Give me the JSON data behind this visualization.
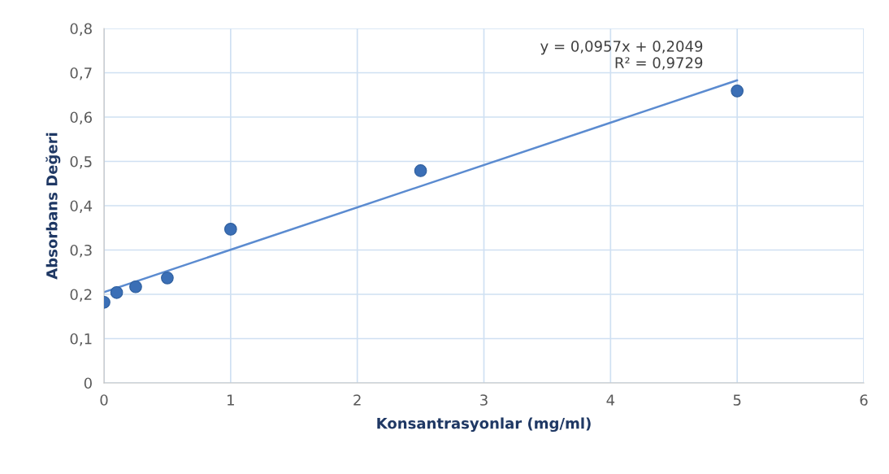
{
  "chart_data": {
    "type": "scatter",
    "xlabel": "Konsantrasyonlar (mg/ml)",
    "ylabel": "Absorbans Değeri",
    "annotations": [
      {
        "text": "y = 0,0957x + 0,2049\nR² = 0,9729",
        "x": 5,
        "y": 0.6834
      }
    ],
    "series": [
      {
        "color": "#3b6fb6",
        "x": [
          0,
          0.1,
          0.25,
          0.5,
          1,
          2.5,
          5
        ],
        "values": [
          0.182,
          0.204,
          0.217,
          0.237,
          0.347,
          0.479,
          0.659
        ],
        "marker": "circle"
      },
      {
        "type": "line",
        "color": "#5b8bd0",
        "x": [
          0,
          5
        ],
        "values": [
          0.205,
          0.683
        ],
        "line_style": "solid"
      }
    ],
    "xlim": [
      0,
      6
    ],
    "xticks": [
      0,
      1,
      2,
      3,
      4,
      5,
      6
    ],
    "ylim": [
      0,
      0.8
    ],
    "yticks": [
      {
        "value": 0,
        "label": "0"
      },
      {
        "value": 0.1,
        "label": "0,1"
      },
      {
        "value": 0.2,
        "label": "0,2"
      },
      {
        "value": 0.3,
        "label": "0,3"
      },
      {
        "value": 0.4,
        "label": "0,4"
      },
      {
        "value": 0.5,
        "label": "0,5"
      },
      {
        "value": 0.6,
        "label": "0,6"
      },
      {
        "value": 0.7,
        "label": "0,7"
      },
      {
        "value": 0.8,
        "label": "0,8"
      }
    ],
    "grid": true,
    "legend": false
  }
}
